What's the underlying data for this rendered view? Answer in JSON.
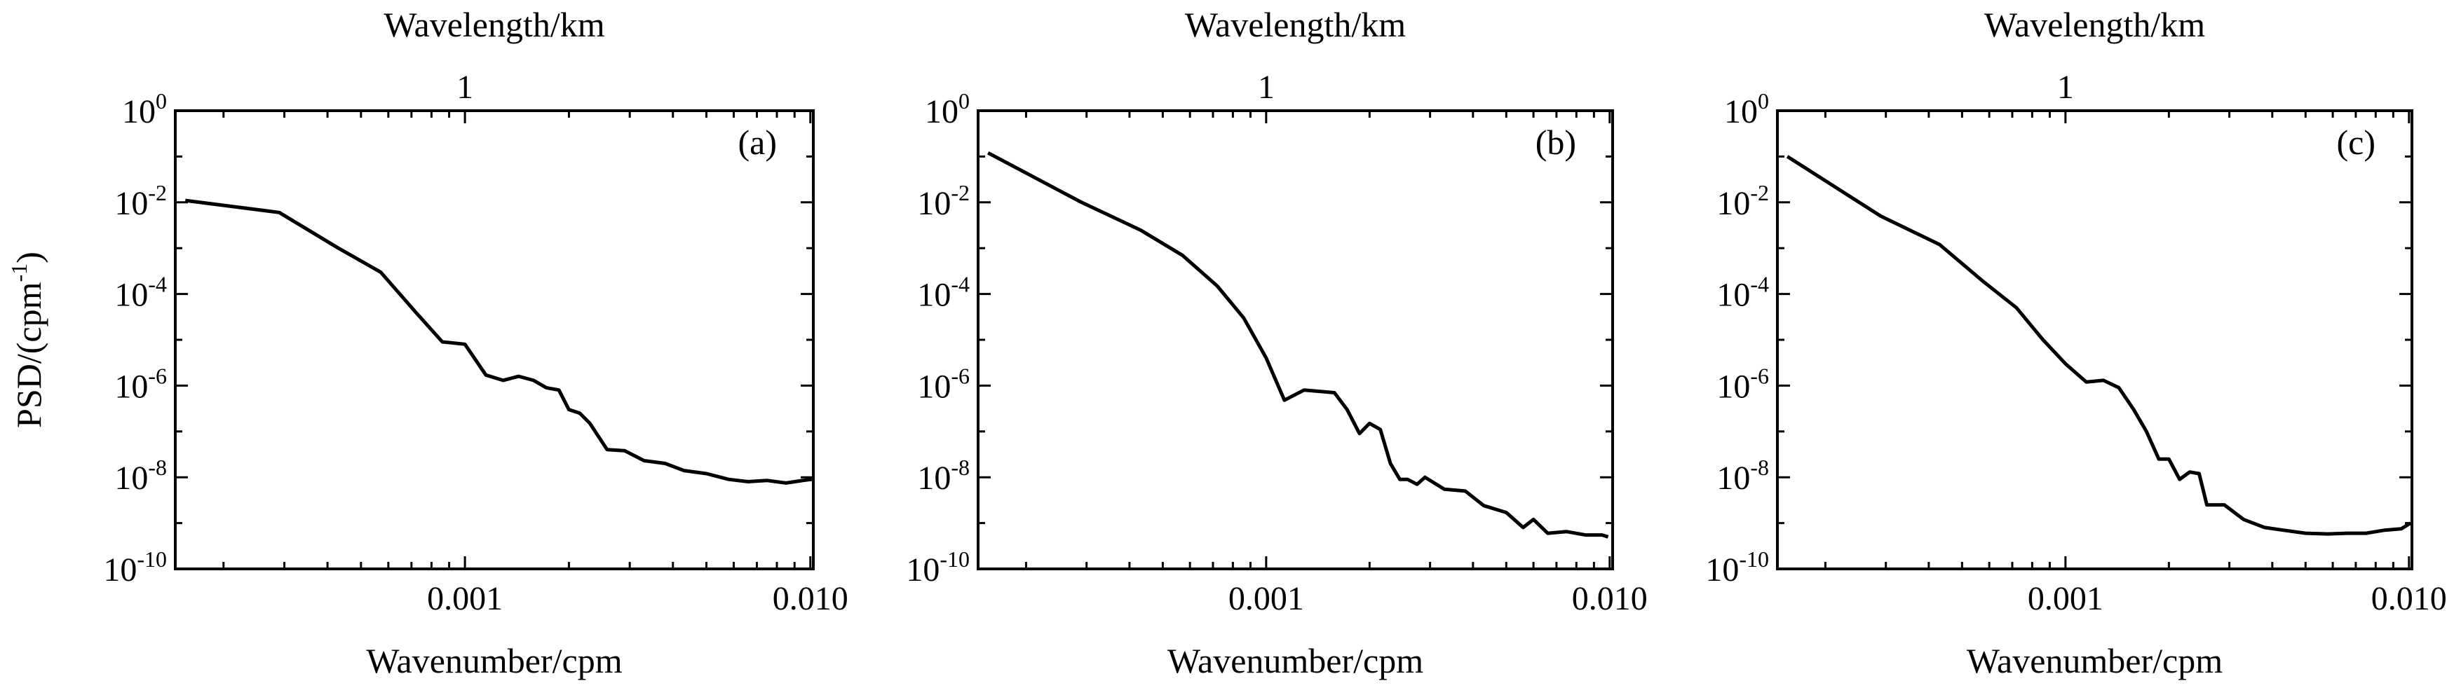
{
  "chart_data": [
    {
      "type": "line",
      "panel_label": "(a)",
      "top_xlabel": "Wavelength/km",
      "top_ticks": [
        "1"
      ],
      "top_tick_values_km": [
        1
      ],
      "xlabel": "Wavenumber/cpm",
      "ylabel": "PSD/(cpm",
      "ylabel_sup": "-1",
      "ylabel_close": ")",
      "x_scale": "log",
      "y_scale": "log",
      "xlim": [
        0.000145,
        0.0102
      ],
      "ylim": [
        1e-10,
        1
      ],
      "x_ticks": [
        {
          "value": 0.001,
          "label": "0.001"
        },
        {
          "value": 0.01,
          "label": "0.010"
        }
      ],
      "y_ticks": [
        {
          "value": 1,
          "base": "10",
          "exp": "0"
        },
        {
          "value": 0.01,
          "base": "10",
          "exp": "-2"
        },
        {
          "value": 0.0001,
          "base": "10",
          "exp": "-4"
        },
        {
          "value": 1e-06,
          "base": "10",
          "exp": "-6"
        },
        {
          "value": 1e-08,
          "base": "10",
          "exp": "-8"
        },
        {
          "value": 1e-10,
          "base": "10",
          "exp": "-10"
        }
      ],
      "x": [
        0.000155,
        0.00029,
        0.00043,
        0.00057,
        0.00072,
        0.00086,
        0.001,
        0.00115,
        0.00129,
        0.00143,
        0.00158,
        0.00172,
        0.00187,
        0.002,
        0.00215,
        0.0023,
        0.00258,
        0.0029,
        0.0033,
        0.0038,
        0.0043,
        0.005,
        0.0058,
        0.0066,
        0.0075,
        0.0085,
        0.0095,
        0.0101
      ],
      "y": [
        0.011,
        0.006,
        0.001,
        0.0003,
        4e-05,
        9e-06,
        8e-06,
        1.7e-06,
        1.3e-06,
        1.6e-06,
        1.3e-06,
        9e-07,
        8e-07,
        3e-07,
        2.5e-07,
        1.5e-07,
        4e-08,
        3.8e-08,
        2.3e-08,
        2e-08,
        1.4e-08,
        1.2e-08,
        9e-09,
        8e-09,
        8.5e-09,
        7.5e-09,
        8.5e-09,
        9e-09
      ]
    },
    {
      "type": "line",
      "panel_label": "(b)",
      "top_xlabel": "Wavelength/km",
      "top_ticks": [
        "1"
      ],
      "top_tick_values_km": [
        1
      ],
      "xlabel": "Wavenumber/cpm",
      "x_scale": "log",
      "y_scale": "log",
      "xlim": [
        0.000145,
        0.0102
      ],
      "ylim": [
        1e-10,
        1
      ],
      "x_ticks": [
        {
          "value": 0.001,
          "label": "0.001"
        },
        {
          "value": 0.01,
          "label": "0.010"
        }
      ],
      "y_ticks": [
        {
          "value": 1,
          "base": "10",
          "exp": "0"
        },
        {
          "value": 0.01,
          "base": "10",
          "exp": "-2"
        },
        {
          "value": 0.0001,
          "base": "10",
          "exp": "-4"
        },
        {
          "value": 1e-06,
          "base": "10",
          "exp": "-6"
        },
        {
          "value": 1e-08,
          "base": "10",
          "exp": "-8"
        },
        {
          "value": 1e-10,
          "base": "10",
          "exp": "-10"
        }
      ],
      "x": [
        0.000155,
        0.00029,
        0.00043,
        0.00057,
        0.00072,
        0.00086,
        0.001,
        0.00113,
        0.00129,
        0.00143,
        0.00158,
        0.00172,
        0.00187,
        0.002,
        0.00215,
        0.0023,
        0.00245,
        0.00258,
        0.00275,
        0.0029,
        0.0033,
        0.0038,
        0.0043,
        0.005,
        0.0056,
        0.006,
        0.0066,
        0.0075,
        0.0085,
        0.0095,
        0.0099
      ],
      "y": [
        0.12,
        0.01,
        0.0025,
        0.0007,
        0.00015,
        3e-05,
        4e-06,
        4.8e-07,
        8e-07,
        7.5e-07,
        7e-07,
        3e-07,
        9e-08,
        1.5e-07,
        1.1e-07,
        2e-08,
        9e-09,
        9e-09,
        7e-09,
        1e-08,
        5.5e-09,
        5e-09,
        2.4e-09,
        1.7e-09,
        8e-10,
        1.2e-09,
        6e-10,
        6.5e-10,
        5.5e-10,
        5.5e-10,
        5e-10
      ]
    },
    {
      "type": "line",
      "panel_label": "(c)",
      "top_xlabel": "Wavelength/km",
      "top_ticks": [
        "1"
      ],
      "top_tick_values_km": [
        1
      ],
      "xlabel": "Wavenumber/cpm",
      "x_scale": "log",
      "y_scale": "log",
      "xlim": [
        0.000145,
        0.0102
      ],
      "ylim": [
        1e-10,
        1
      ],
      "x_ticks": [
        {
          "value": 0.001,
          "label": "0.001"
        },
        {
          "value": 0.01,
          "label": "0.010"
        }
      ],
      "y_ticks": [
        {
          "value": 1,
          "base": "10",
          "exp": "0"
        },
        {
          "value": 0.01,
          "base": "10",
          "exp": "-2"
        },
        {
          "value": 0.0001,
          "base": "10",
          "exp": "-4"
        },
        {
          "value": 1e-06,
          "base": "10",
          "exp": "-6"
        },
        {
          "value": 1e-08,
          "base": "10",
          "exp": "-8"
        },
        {
          "value": 1e-10,
          "base": "10",
          "exp": "-10"
        }
      ],
      "x": [
        0.000155,
        0.00029,
        0.00043,
        0.00057,
        0.00072,
        0.00086,
        0.001,
        0.00115,
        0.00129,
        0.00143,
        0.00158,
        0.00172,
        0.00187,
        0.002,
        0.00215,
        0.0023,
        0.00245,
        0.00258,
        0.0029,
        0.0033,
        0.0038,
        0.0043,
        0.005,
        0.0058,
        0.0066,
        0.0075,
        0.0085,
        0.0095,
        0.0101
      ],
      "y": [
        0.1,
        0.005,
        0.0012,
        0.0002,
        5e-05,
        1e-05,
        3e-06,
        1.2e-06,
        1.3e-06,
        9e-07,
        3e-07,
        1e-07,
        2.5e-08,
        2.5e-08,
        9e-09,
        1.3e-08,
        1.2e-08,
        2.5e-09,
        2.5e-09,
        1.2e-09,
        8e-10,
        7e-10,
        6e-10,
        5.8e-10,
        6e-10,
        6e-10,
        7e-10,
        7.5e-10,
        1e-09
      ]
    }
  ]
}
